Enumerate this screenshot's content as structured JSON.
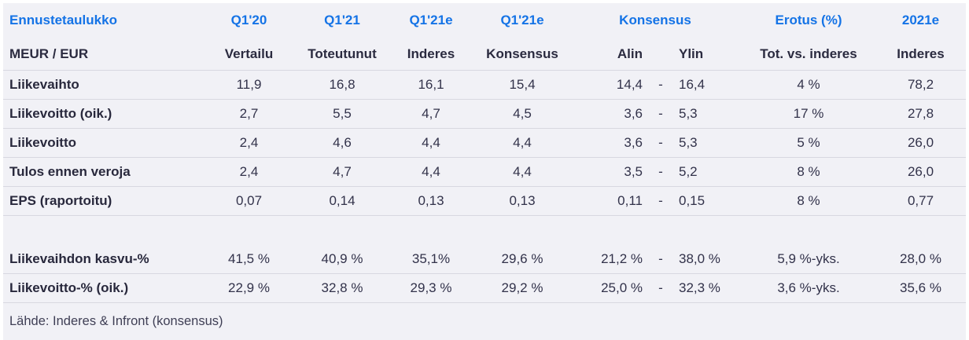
{
  "table": {
    "header1": {
      "title": "Ennustetaulukko",
      "q120": "Q1'20",
      "q121": "Q1'21",
      "q121e": "Q1'21e",
      "q121e_kons": "Q1'21e",
      "konsensus": "Konsensus",
      "erotus": "Erotus (%)",
      "y2021e": "2021e"
    },
    "header2": {
      "title": "MEUR / EUR",
      "q120": "Vertailu",
      "q121": "Toteutunut",
      "q121e": "Inderes",
      "q121e_kons": "Konsensus",
      "alin": "Alin",
      "ylin": "Ylin",
      "erotus": "Tot. vs. inderes",
      "y2021e": "Inderes"
    },
    "rows": [
      {
        "label": "Liikevaihto",
        "q120": "11,9",
        "q121": "16,8",
        "q121e": "16,1",
        "q121e_kons": "15,4",
        "alin": "14,4",
        "dash": "-",
        "ylin": "16,4",
        "erotus": "4 %",
        "y2021e": "78,2"
      },
      {
        "label": "Liikevoitto (oik.)",
        "q120": "2,7",
        "q121": "5,5",
        "q121e": "4,7",
        "q121e_kons": "4,5",
        "alin": "3,6",
        "dash": "-",
        "ylin": "5,3",
        "erotus": "17 %",
        "y2021e": "27,8"
      },
      {
        "label": "Liikevoitto",
        "q120": "2,4",
        "q121": "4,6",
        "q121e": "4,4",
        "q121e_kons": "4,4",
        "alin": "3,6",
        "dash": "-",
        "ylin": "5,3",
        "erotus": "5 %",
        "y2021e": "26,0"
      },
      {
        "label": "Tulos ennen veroja",
        "q120": "2,4",
        "q121": "4,7",
        "q121e": "4,4",
        "q121e_kons": "4,4",
        "alin": "3,5",
        "dash": "-",
        "ylin": "5,2",
        "erotus": "8 %",
        "y2021e": "26,0"
      },
      {
        "label": "EPS (raportoitu)",
        "q120": "0,07",
        "q121": "0,14",
        "q121e": "0,13",
        "q121e_kons": "0,13",
        "alin": "0,11",
        "dash": "-",
        "ylin": "0,15",
        "erotus": "8 %",
        "y2021e": "0,77"
      },
      {
        "label": "",
        "q120": "",
        "q121": "",
        "q121e": "",
        "q121e_kons": "",
        "alin": "",
        "dash": "",
        "ylin": "",
        "erotus": "",
        "y2021e": ""
      },
      {
        "label": "Liikevaihdon kasvu-%",
        "q120": "41,5 %",
        "q121": "40,9 %",
        "q121e": "35,1%",
        "q121e_kons": "29,6 %",
        "alin": "21,2 %",
        "dash": "-",
        "ylin": "38,0 %",
        "erotus": "5,9 %-yks.",
        "y2021e": "28,0 %"
      },
      {
        "label": "Liikevoitto-% (oik.)",
        "q120": "22,9 %",
        "q121": "32,8 %",
        "q121e": "29,3 %",
        "q121e_kons": "29,2 %",
        "alin": "25,0 %",
        "dash": "-",
        "ylin": "32,3 %",
        "erotus": "3,6 %-yks.",
        "y2021e": "35,6 %"
      }
    ],
    "footer": "Lähde: Inderes & Infront  (konsensus)"
  },
  "colors": {
    "accent_blue": "#1473e6",
    "text_dark": "#2b2b40",
    "row_background": "#f1f1f6",
    "divider": "#d8d8e0"
  }
}
